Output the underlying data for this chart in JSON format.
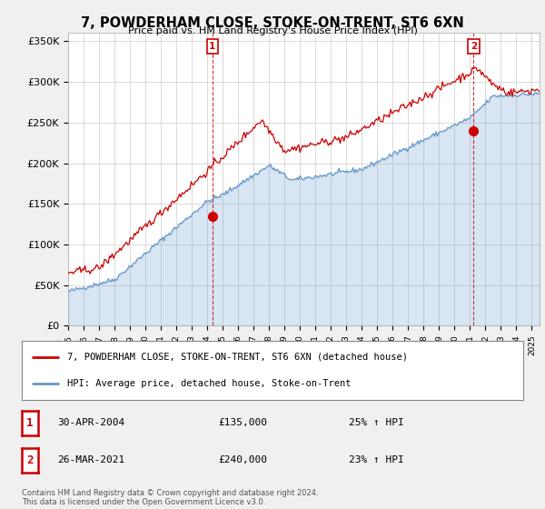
{
  "title": "7, POWDERHAM CLOSE, STOKE-ON-TRENT, ST6 6XN",
  "subtitle": "Price paid vs. HM Land Registry's House Price Index (HPI)",
  "ylabel_ticks": [
    "£0",
    "£50K",
    "£100K",
    "£150K",
    "£200K",
    "£250K",
    "£300K",
    "£350K"
  ],
  "ytick_values": [
    0,
    50000,
    100000,
    150000,
    200000,
    250000,
    300000,
    350000
  ],
  "ylim": [
    0,
    360000
  ],
  "xlim_start": 1995.0,
  "xlim_end": 2025.5,
  "red_color": "#cc0000",
  "blue_color": "#6699cc",
  "blue_fill_color": "#ddeeff",
  "marker1_year": 2004.33,
  "marker1_value": 135000,
  "marker1_label": "1",
  "marker2_year": 2021.23,
  "marker2_value": 240000,
  "marker2_label": "2",
  "legend_line1": "7, POWDERHAM CLOSE, STOKE-ON-TRENT, ST6 6XN (detached house)",
  "legend_line2": "HPI: Average price, detached house, Stoke-on-Trent",
  "table_row1": [
    "1",
    "30-APR-2004",
    "£135,000",
    "25% ↑ HPI"
  ],
  "table_row2": [
    "2",
    "26-MAR-2021",
    "£240,000",
    "23% ↑ HPI"
  ],
  "footer": "Contains HM Land Registry data © Crown copyright and database right 2024.\nThis data is licensed under the Open Government Licence v3.0.",
  "background_color": "#f0f0f0",
  "plot_bg_color": "#ffffff",
  "grid_color": "#cccccc"
}
